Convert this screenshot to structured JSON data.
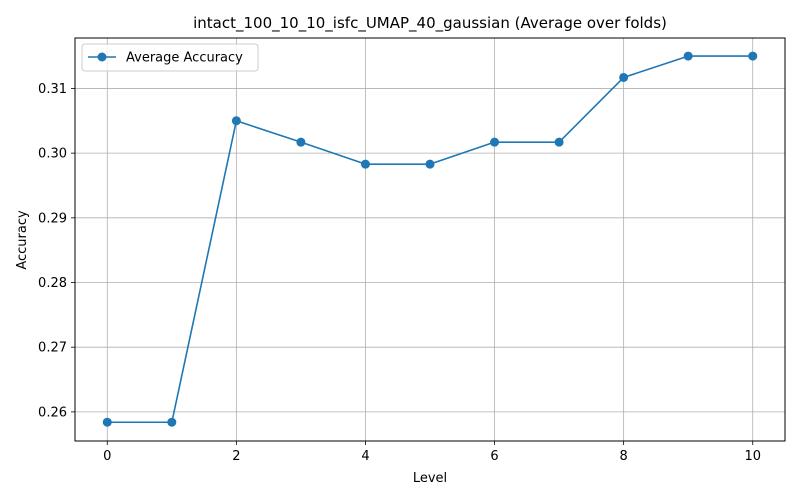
{
  "chart_data": {
    "type": "line",
    "title": "intact_100_10_10_isfc_UMAP_40_gaussian (Average over folds)",
    "xlabel": "Level",
    "ylabel": "Accuracy",
    "x": [
      0,
      1,
      2,
      3,
      4,
      5,
      6,
      7,
      8,
      9,
      10
    ],
    "series": [
      {
        "name": "Average Accuracy",
        "color": "#1f77b4",
        "marker": "circle",
        "values": [
          0.2584,
          0.2584,
          0.305,
          0.3017,
          0.2983,
          0.2983,
          0.3017,
          0.3017,
          0.3117,
          0.315,
          0.315
        ]
      }
    ],
    "xlim": [
      -0.5,
      10.5
    ],
    "ylim": [
      0.2555,
      0.3178
    ],
    "xticks": [
      0,
      2,
      4,
      6,
      8,
      10
    ],
    "xtick_labels": [
      "0",
      "2",
      "4",
      "6",
      "8",
      "10"
    ],
    "yticks": [
      0.26,
      0.27,
      0.28,
      0.29,
      0.3,
      0.31
    ],
    "ytick_labels": [
      "0.26",
      "0.27",
      "0.28",
      "0.29",
      "0.30",
      "0.31"
    ],
    "grid": true,
    "legend_position": "top-left"
  }
}
